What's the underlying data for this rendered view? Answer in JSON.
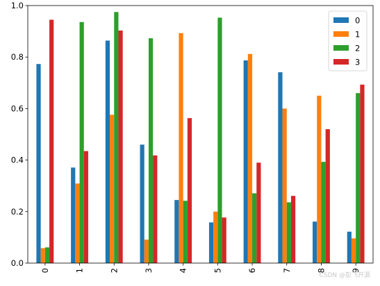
{
  "chart_data": {
    "type": "bar",
    "categories": [
      "0",
      "1",
      "2",
      "3",
      "4",
      "5",
      "6",
      "7",
      "8",
      "9"
    ],
    "series": [
      {
        "name": "0",
        "color": "#1f77b4",
        "values": [
          0.773,
          0.371,
          0.864,
          0.46,
          0.245,
          0.158,
          0.787,
          0.741,
          0.161,
          0.122
        ]
      },
      {
        "name": "1",
        "color": "#ff7f0e",
        "values": [
          0.058,
          0.309,
          0.576,
          0.091,
          0.893,
          0.2,
          0.812,
          0.6,
          0.65,
          0.096
        ]
      },
      {
        "name": "2",
        "color": "#2ca02c",
        "values": [
          0.061,
          0.936,
          0.975,
          0.873,
          0.242,
          0.953,
          0.271,
          0.236,
          0.393,
          0.66
        ]
      },
      {
        "name": "3",
        "color": "#d62728",
        "values": [
          0.945,
          0.435,
          0.903,
          0.418,
          0.563,
          0.177,
          0.39,
          0.261,
          0.52,
          0.693
        ]
      }
    ],
    "ylim": [
      0,
      1.0
    ],
    "yticks": [
      "0.0",
      "0.2",
      "0.4",
      "0.6",
      "0.8",
      "1.0"
    ],
    "xtick_rotation": "vertical",
    "grid": false,
    "legend_position": "top-right",
    "xlabel": "",
    "ylabel": "",
    "title": ""
  },
  "watermark": "CSDN @彭飞开源"
}
